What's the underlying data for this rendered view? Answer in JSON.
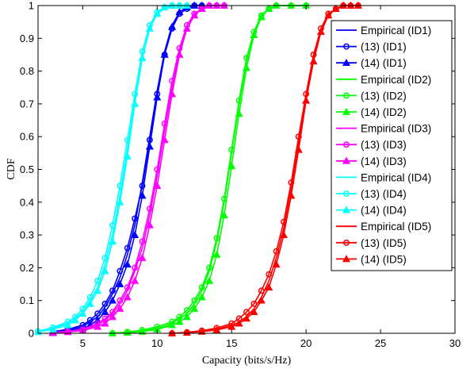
{
  "chart_data": {
    "type": "line",
    "xlabel": "Capacity (bits/s/Hz)",
    "ylabel": "CDF",
    "xlim": [
      2,
      30
    ],
    "ylim": [
      0,
      1
    ],
    "xticks": [
      5,
      10,
      15,
      20,
      25,
      30
    ],
    "yticks": [
      0,
      0.1,
      0.2,
      0.3,
      0.4,
      0.5,
      0.6,
      0.7,
      0.8,
      0.9,
      1
    ],
    "grid": false,
    "legend_position": "top-right",
    "series": [
      {
        "name": "Empirical (ID1)",
        "color": "#0000ff",
        "marker": "none",
        "x": [
          3.0,
          4.0,
          5.0,
          5.5,
          6.0,
          6.5,
          7.0,
          7.5,
          8.0,
          8.5,
          9.0,
          9.5,
          10.0,
          10.5,
          11.0,
          11.5,
          12.0,
          12.5,
          13.0
        ],
        "y": [
          0.005,
          0.01,
          0.02,
          0.035,
          0.05,
          0.08,
          0.12,
          0.17,
          0.24,
          0.33,
          0.46,
          0.6,
          0.74,
          0.86,
          0.94,
          0.98,
          0.995,
          1.0,
          1.0
        ]
      },
      {
        "name": "(13) (ID1)",
        "color": "#0000ff",
        "marker": "circle",
        "x": [
          3.0,
          4.0,
          5.0,
          5.5,
          6.0,
          6.5,
          7.0,
          7.5,
          8.0,
          8.5,
          9.0,
          9.5,
          10.0,
          10.5,
          11.0,
          11.5,
          12.0,
          12.5,
          13.0
        ],
        "y": [
          0.005,
          0.012,
          0.025,
          0.04,
          0.06,
          0.09,
          0.13,
          0.19,
          0.26,
          0.35,
          0.45,
          0.59,
          0.73,
          0.85,
          0.93,
          0.975,
          0.99,
          1.0,
          1.0
        ]
      },
      {
        "name": "(14) (ID1)",
        "color": "#0000ff",
        "marker": "triangle",
        "x": [
          3.0,
          4.0,
          5.0,
          5.5,
          6.0,
          6.5,
          7.0,
          7.5,
          8.0,
          8.5,
          9.0,
          9.5,
          10.0,
          10.5,
          11.0,
          11.5,
          12.0,
          12.5,
          13.0
        ],
        "y": [
          0.003,
          0.008,
          0.015,
          0.025,
          0.04,
          0.065,
          0.1,
          0.15,
          0.21,
          0.3,
          0.42,
          0.57,
          0.72,
          0.85,
          0.935,
          0.98,
          0.995,
          1.0,
          1.0
        ]
      },
      {
        "name": "Empirical (ID2)",
        "color": "#00ff00",
        "marker": "none",
        "x": [
          7.0,
          8.0,
          9.0,
          10.0,
          11.0,
          11.5,
          12.0,
          12.5,
          13.0,
          13.5,
          14.0,
          14.5,
          15.0,
          15.5,
          16.0,
          16.5,
          17.0,
          17.5,
          18.0,
          19.0,
          20.0
        ],
        "y": [
          0.0,
          0.003,
          0.008,
          0.015,
          0.03,
          0.045,
          0.06,
          0.09,
          0.13,
          0.19,
          0.28,
          0.4,
          0.55,
          0.7,
          0.83,
          0.92,
          0.97,
          0.99,
          1.0,
          1.0,
          1.0
        ]
      },
      {
        "name": "(13) (ID2)",
        "color": "#00ff00",
        "marker": "circle",
        "x": [
          7.0,
          8.0,
          9.0,
          10.0,
          11.0,
          11.5,
          12.0,
          12.5,
          13.0,
          13.5,
          14.0,
          14.5,
          15.0,
          15.5,
          16.0,
          16.5,
          17.0,
          17.5,
          18.0,
          19.0,
          20.0
        ],
        "y": [
          0.0,
          0.004,
          0.01,
          0.02,
          0.035,
          0.05,
          0.07,
          0.1,
          0.14,
          0.2,
          0.29,
          0.41,
          0.56,
          0.71,
          0.84,
          0.92,
          0.97,
          0.99,
          1.0,
          1.0,
          1.0
        ]
      },
      {
        "name": "(14) (ID2)",
        "color": "#00ff00",
        "marker": "triangle",
        "x": [
          7.0,
          8.0,
          9.0,
          10.0,
          11.0,
          11.5,
          12.0,
          12.5,
          13.0,
          13.5,
          14.0,
          14.5,
          15.0,
          15.5,
          16.0,
          16.5,
          17.0,
          17.5,
          18.0,
          19.0,
          20.0
        ],
        "y": [
          0.0,
          0.002,
          0.005,
          0.012,
          0.025,
          0.035,
          0.05,
          0.075,
          0.11,
          0.16,
          0.24,
          0.36,
          0.51,
          0.67,
          0.81,
          0.91,
          0.965,
          0.99,
          1.0,
          1.0,
          1.0
        ]
      },
      {
        "name": "Empirical (ID3)",
        "color": "#ff00ff",
        "marker": "none",
        "x": [
          3.0,
          4.0,
          5.0,
          6.0,
          6.5,
          7.0,
          7.5,
          8.0,
          8.5,
          9.0,
          9.5,
          10.0,
          10.5,
          11.0,
          11.5,
          12.0,
          12.5,
          13.0,
          13.5,
          14.0,
          14.5
        ],
        "y": [
          0.002,
          0.005,
          0.01,
          0.025,
          0.04,
          0.06,
          0.09,
          0.13,
          0.19,
          0.26,
          0.36,
          0.48,
          0.62,
          0.75,
          0.86,
          0.93,
          0.97,
          0.99,
          1.0,
          1.0,
          1.0
        ]
      },
      {
        "name": "(13) (ID3)",
        "color": "#ff00ff",
        "marker": "circle",
        "x": [
          3.0,
          4.0,
          5.0,
          6.0,
          6.5,
          7.0,
          7.5,
          8.0,
          8.5,
          9.0,
          9.5,
          10.0,
          10.5,
          11.0,
          11.5,
          12.0,
          12.5,
          13.0,
          13.5,
          14.0,
          14.5
        ],
        "y": [
          0.003,
          0.006,
          0.012,
          0.03,
          0.045,
          0.065,
          0.1,
          0.14,
          0.2,
          0.28,
          0.38,
          0.5,
          0.64,
          0.77,
          0.87,
          0.94,
          0.975,
          0.99,
          1.0,
          1.0,
          1.0
        ]
      },
      {
        "name": "(14) (ID3)",
        "color": "#ff00ff",
        "marker": "triangle",
        "x": [
          3.0,
          4.0,
          5.0,
          6.0,
          6.5,
          7.0,
          7.5,
          8.0,
          8.5,
          9.0,
          9.5,
          10.0,
          10.5,
          11.0,
          11.5,
          12.0,
          12.5,
          13.0,
          13.5,
          14.0,
          14.5
        ],
        "y": [
          0.001,
          0.004,
          0.008,
          0.02,
          0.03,
          0.05,
          0.075,
          0.11,
          0.16,
          0.23,
          0.33,
          0.45,
          0.59,
          0.73,
          0.85,
          0.93,
          0.97,
          0.99,
          1.0,
          1.0,
          1.0
        ]
      },
      {
        "name": "Empirical (ID4)",
        "color": "#00ffff",
        "marker": "none",
        "x": [
          2.0,
          3.0,
          4.0,
          4.5,
          5.0,
          5.5,
          6.0,
          6.5,
          7.0,
          7.5,
          8.0,
          8.5,
          9.0,
          9.5,
          10.0,
          10.5,
          11.0,
          11.5,
          12.0
        ],
        "y": [
          0.005,
          0.015,
          0.03,
          0.045,
          0.065,
          0.1,
          0.14,
          0.21,
          0.3,
          0.42,
          0.56,
          0.71,
          0.84,
          0.93,
          0.975,
          0.99,
          1.0,
          1.0,
          1.0
        ]
      },
      {
        "name": "(13) (ID4)",
        "color": "#00ffff",
        "marker": "circle",
        "x": [
          2.0,
          3.0,
          4.0,
          4.5,
          5.0,
          5.5,
          6.0,
          6.5,
          7.0,
          7.5,
          8.0,
          8.5,
          9.0,
          9.5,
          10.0,
          10.5,
          11.0,
          11.5,
          12.0
        ],
        "y": [
          0.006,
          0.018,
          0.035,
          0.05,
          0.075,
          0.11,
          0.16,
          0.23,
          0.33,
          0.45,
          0.59,
          0.73,
          0.86,
          0.94,
          0.98,
          0.995,
          1.0,
          1.0,
          1.0
        ]
      },
      {
        "name": "(14) (ID4)",
        "color": "#00ffff",
        "marker": "triangle",
        "x": [
          2.0,
          3.0,
          4.0,
          4.5,
          5.0,
          5.5,
          6.0,
          6.5,
          7.0,
          7.5,
          8.0,
          8.5,
          9.0,
          9.5,
          10.0,
          10.5,
          11.0,
          11.5,
          12.0
        ],
        "y": [
          0.004,
          0.012,
          0.025,
          0.04,
          0.06,
          0.09,
          0.13,
          0.19,
          0.28,
          0.4,
          0.54,
          0.7,
          0.84,
          0.93,
          0.975,
          0.995,
          1.0,
          1.0,
          1.0
        ]
      },
      {
        "name": "Empirical (ID5)",
        "color": "#ff0000",
        "marker": "none",
        "x": [
          11.0,
          12.0,
          13.0,
          14.0,
          15.0,
          15.5,
          16.0,
          16.5,
          17.0,
          17.5,
          18.0,
          18.5,
          19.0,
          19.5,
          20.0,
          20.5,
          21.0,
          21.5,
          22.0,
          22.5,
          23.0,
          23.5
        ],
        "y": [
          0.0,
          0.002,
          0.006,
          0.012,
          0.025,
          0.035,
          0.05,
          0.075,
          0.11,
          0.16,
          0.23,
          0.32,
          0.44,
          0.58,
          0.72,
          0.84,
          0.93,
          0.975,
          0.99,
          1.0,
          1.0,
          1.0
        ]
      },
      {
        "name": "(13) (ID5)",
        "color": "#ff0000",
        "marker": "circle",
        "x": [
          11.0,
          12.0,
          13.0,
          14.0,
          15.0,
          15.5,
          16.0,
          16.5,
          17.0,
          17.5,
          18.0,
          18.5,
          19.0,
          19.5,
          20.0,
          20.5,
          21.0,
          21.5,
          22.0,
          22.5,
          23.0,
          23.5
        ],
        "y": [
          0.0,
          0.003,
          0.008,
          0.016,
          0.03,
          0.045,
          0.065,
          0.09,
          0.13,
          0.18,
          0.25,
          0.34,
          0.46,
          0.6,
          0.73,
          0.85,
          0.93,
          0.975,
          0.99,
          1.0,
          1.0,
          1.0
        ]
      },
      {
        "name": "(14) (ID5)",
        "color": "#ff0000",
        "marker": "triangle",
        "x": [
          11.0,
          12.0,
          13.0,
          14.0,
          15.0,
          15.5,
          16.0,
          16.5,
          17.0,
          17.5,
          18.0,
          18.5,
          19.0,
          19.5,
          20.0,
          20.5,
          21.0,
          21.5,
          22.0,
          22.5,
          23.0,
          23.5
        ],
        "y": [
          0.0,
          0.002,
          0.005,
          0.01,
          0.02,
          0.03,
          0.045,
          0.065,
          0.1,
          0.14,
          0.21,
          0.3,
          0.42,
          0.56,
          0.71,
          0.83,
          0.92,
          0.97,
          0.99,
          1.0,
          1.0,
          1.0
        ]
      }
    ]
  }
}
